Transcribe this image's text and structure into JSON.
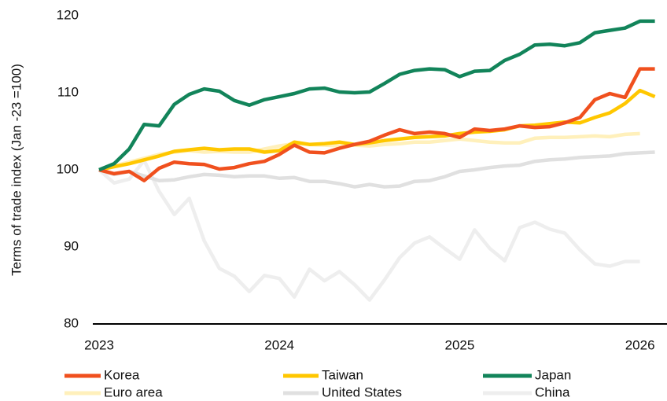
{
  "chart_data": {
    "type": "line",
    "y_label": "Terms of trade index (Jan -23 =100)",
    "x": [
      2023,
      2023.083,
      2023.167,
      2023.25,
      2023.333,
      2023.417,
      2023.5,
      2023.583,
      2023.667,
      2023.75,
      2023.833,
      2023.917,
      2024,
      2024.083,
      2024.167,
      2024.25,
      2024.333,
      2024.417,
      2024.5,
      2024.583,
      2024.667,
      2024.75,
      2024.833,
      2024.917,
      2025,
      2025.083,
      2025.167,
      2025.25,
      2025.333,
      2025.417,
      2025.5,
      2025.583,
      2025.667,
      2025.75,
      2025.833,
      2025.917,
      2026,
      2026.083
    ],
    "xlim": [
      2022.965,
      2026.15
    ],
    "xticks": [
      2023,
      2024,
      2025,
      2026
    ],
    "ylim": [
      80,
      120
    ],
    "yticks": [
      80,
      90,
      100,
      110,
      120
    ],
    "series": [
      {
        "name": "China",
        "color": "#eeeeee",
        "values": [
          100,
          98.3,
          98.8,
          101.2,
          97.2,
          94.2,
          96.3,
          90.8,
          87.2,
          86.2,
          84.2,
          86.3,
          85.9,
          83.5,
          87.1,
          85.6,
          86.8,
          85.1,
          83.1,
          85.7,
          88.6,
          90.5,
          91.3,
          89.8,
          88.4,
          92.2,
          89.8,
          88.2,
          92.5,
          93.2,
          92.3,
          91.8,
          89.6,
          87.8,
          87.5,
          88.1,
          88.1,
          null
        ]
      },
      {
        "name": "United States",
        "color": "#e0e0e0",
        "values": [
          100,
          99.4,
          99.8,
          99.2,
          98.6,
          98.7,
          99.1,
          99.4,
          99.3,
          99.1,
          99.2,
          99.2,
          98.9,
          99,
          98.5,
          98.5,
          98.2,
          97.8,
          98.1,
          97.8,
          97.9,
          98.5,
          98.6,
          99.1,
          99.8,
          100,
          100.3,
          100.5,
          100.6,
          101.1,
          101.3,
          101.4,
          101.6,
          101.7,
          101.8,
          102.1,
          102.2,
          102.3
        ]
      },
      {
        "name": "Euro area",
        "color": "#fff0bb",
        "values": [
          100,
          100.5,
          101,
          101.5,
          102,
          102.3,
          102.5,
          102.3,
          102.4,
          102.3,
          102.3,
          102.7,
          103.1,
          103.4,
          103.3,
          103.2,
          103.1,
          103.2,
          103.1,
          103.3,
          103.4,
          103.6,
          103.6,
          103.8,
          104,
          103.8,
          103.6,
          103.5,
          103.5,
          104.1,
          104.2,
          104.2,
          104.3,
          104.4,
          104.3,
          104.6,
          104.7,
          null
        ]
      },
      {
        "name": "Taiwan",
        "color": "#ffc700",
        "values": [
          100,
          100.4,
          100.8,
          101.3,
          101.8,
          102.4,
          102.6,
          102.8,
          102.6,
          102.7,
          102.7,
          102.3,
          102.5,
          103.6,
          103.3,
          103.4,
          103.6,
          103.3,
          103.5,
          103.8,
          104,
          104.2,
          104.3,
          104.4,
          104.7,
          104.9,
          105,
          105.2,
          105.7,
          105.8,
          106,
          106.2,
          106.1,
          106.8,
          107.4,
          108.6,
          110.3,
          109.5
        ]
      },
      {
        "name": "Korea",
        "color": "#f0501e",
        "values": [
          100,
          99.5,
          99.8,
          98.6,
          100.2,
          101,
          100.8,
          100.7,
          100.1,
          100.3,
          100.8,
          101.1,
          102,
          103.2,
          102.3,
          102.2,
          102.8,
          103.3,
          103.7,
          104.5,
          105.2,
          104.7,
          104.9,
          104.7,
          104.2,
          105.3,
          105.1,
          105.3,
          105.7,
          105.5,
          105.6,
          106.1,
          106.8,
          109.1,
          109.9,
          109.4,
          113.1,
          113.1
        ]
      },
      {
        "name": "Japan",
        "color": "#12845a",
        "values": [
          100,
          100.8,
          102.7,
          105.9,
          105.7,
          108.5,
          109.8,
          110.5,
          110.2,
          109,
          108.4,
          109.1,
          109.5,
          109.9,
          110.5,
          110.6,
          110.1,
          110,
          110.1,
          111.2,
          112.4,
          112.9,
          113.1,
          113,
          112.1,
          112.8,
          112.9,
          114.2,
          115,
          116.2,
          116.3,
          116.1,
          116.5,
          117.8,
          118.1,
          118.4,
          119.3,
          119.3
        ]
      }
    ]
  }
}
